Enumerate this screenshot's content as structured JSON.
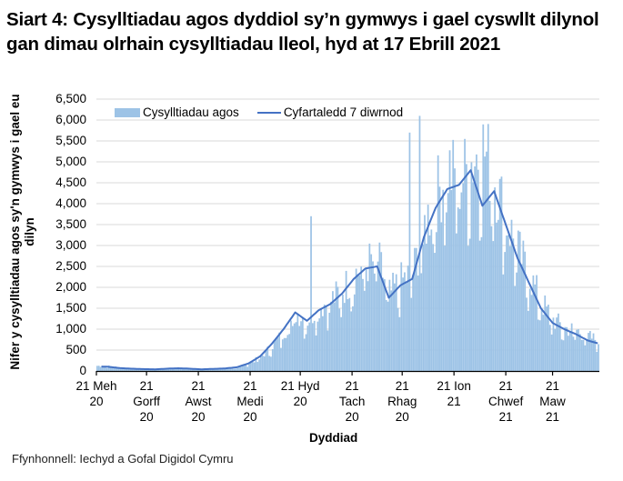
{
  "title": "Siart 4: Cysylltiadau agos dyddiol sy’n gymwys i gael cyswllt dilynol gan dimau olrhain cysylltiadau lleol, hyd at 17 Ebrill 2021",
  "source": "Ffynhonnell: Iechyd a Gofal Digidol Cymru",
  "colors": {
    "bars": "#9dc3e6",
    "line": "#4472c4",
    "grid": "#d9d9d9",
    "axis": "#000000"
  },
  "chart_data": {
    "type": "bar+line",
    "title": "Siart 4: Cysylltiadau agos dyddiol sy’n gymwys i gael cyswllt dilynol gan dimau olrhain cysylltiadau lleol, hyd at 17 Ebrill 2021",
    "xlabel": "Dyddiad",
    "ylabel": "Nifer y cysylltiadau agos sy'n gymwys i gael eu dilyn",
    "ylim": [
      0,
      6500
    ],
    "yticks": [
      "0",
      "500",
      "1,000",
      "1,500",
      "2,000",
      "2,500",
      "3,000",
      "3,500",
      "4,000",
      "4,500",
      "5,000",
      "5,500",
      "6,000",
      "6,500"
    ],
    "xticks": [
      {
        "label": [
          "21 Meh",
          "20"
        ],
        "day": 0
      },
      {
        "label": [
          "21",
          "Gorff",
          "20"
        ],
        "day": 30
      },
      {
        "label": [
          "21",
          "Awst",
          "20"
        ],
        "day": 61
      },
      {
        "label": [
          "21",
          "Medi",
          "20"
        ],
        "day": 92
      },
      {
        "label": [
          "21 Hyd",
          "20"
        ],
        "day": 122
      },
      {
        "label": [
          "21",
          "Tach",
          "20"
        ],
        "day": 153
      },
      {
        "label": [
          "21",
          "Rhag",
          "20"
        ],
        "day": 183
      },
      {
        "label": [
          "21 Ion",
          "21"
        ],
        "day": 214
      },
      {
        "label": [
          "21",
          "Chwef",
          "21"
        ],
        "day": 245
      },
      {
        "label": [
          "21",
          "Maw",
          "21"
        ],
        "day": 273
      }
    ],
    "grid": true,
    "legend_position": "top",
    "series": [
      {
        "name": "Cysylltiadau agos",
        "type": "bar",
        "weekly_values": [
          120,
          110,
          80,
          60,
          50,
          40,
          60,
          70,
          60,
          40,
          50,
          60,
          80,
          180,
          330,
          600,
          900,
          1350,
          1200,
          1500,
          1650,
          1900,
          2250,
          2500,
          2600,
          1800,
          2100,
          2300,
          3400,
          4100,
          4700,
          4400,
          4900,
          5200,
          4500,
          3500,
          2800,
          2200,
          1600,
          1200,
          1000,
          950,
          800,
          700,
          600,
          550,
          520,
          560,
          600,
          620,
          450,
          250,
          220,
          230
        ]
      },
      {
        "name": "Cyfartaledd 7 diwrnod",
        "type": "line",
        "weekly_values": [
          110,
          100,
          70,
          55,
          45,
          40,
          55,
          65,
          55,
          40,
          50,
          60,
          90,
          180,
          350,
          650,
          1000,
          1400,
          1200,
          1450,
          1600,
          1850,
          2200,
          2450,
          2500,
          1750,
          2050,
          2200,
          3200,
          3900,
          4350,
          4450,
          4800,
          3950,
          4300,
          3500,
          2700,
          2100,
          1500,
          1150,
          1000,
          880,
          730,
          650,
          530,
          520,
          540,
          560,
          580,
          590,
          380,
          200,
          190,
          200
        ]
      }
    ],
    "peak_bar": {
      "label": "Rhagfyr 2020",
      "value": 6100
    }
  },
  "legend": {
    "bars_label": "Cysylltiadau agos",
    "line_label": "Cyfartaledd 7 diwrnod"
  }
}
